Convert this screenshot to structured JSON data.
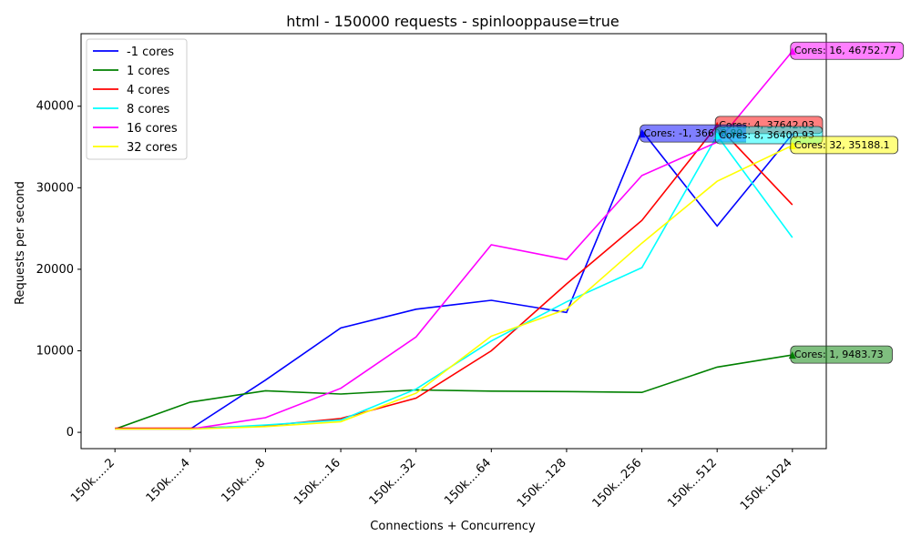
{
  "chart_data": {
    "type": "line",
    "title": "html - 150000 requests - spinlooppause=true",
    "xlabel": "Connections + Concurrency",
    "ylabel": "Requests per second",
    "categories": [
      "150k.....2",
      "150k.....4",
      "150k.....8",
      "150k....16",
      "150k....32",
      "150k....64",
      "150k...128",
      "150k...256",
      "150k...512",
      "150k..1024"
    ],
    "ylim": [
      -2000,
      48900
    ],
    "yticks": [
      0,
      10000,
      20000,
      30000,
      40000
    ],
    "ytick_labels": [
      "0",
      "10000",
      "20000",
      "30000",
      "40000"
    ],
    "grid": false,
    "legend_position": "top-left",
    "series": [
      {
        "name": "-1 cores",
        "color": "#0000ff",
        "values": [
          null,
          400,
          6400,
          12800,
          15100,
          16200,
          14700,
          37000,
          25300,
          36600
        ]
      },
      {
        "name": "1 cores",
        "color": "#008000",
        "values": [
          400,
          3700,
          5100,
          4700,
          5200,
          5050,
          5000,
          4900,
          8000,
          9483.73
        ]
      },
      {
        "name": "4 cores",
        "color": "#ff0000",
        "values": [
          500,
          500,
          800,
          1700,
          4200,
          10000,
          18200,
          26000,
          37642.03,
          27900
        ]
      },
      {
        "name": "8 cores",
        "color": "#00ffff",
        "values": [
          400,
          400,
          900,
          1500,
          5300,
          11200,
          16000,
          20200,
          36400.93,
          23900
        ]
      },
      {
        "name": "16 cores",
        "color": "#ff00ff",
        "values": [
          400,
          400,
          1800,
          5400,
          11700,
          23000,
          21200,
          31500,
          35600,
          46752.77
        ]
      },
      {
        "name": "32 cores",
        "color": "#ffff00",
        "values": [
          400,
          400,
          700,
          1300,
          4800,
          11800,
          15100,
          23200,
          30800,
          35188.1
        ]
      }
    ],
    "annotations": [
      {
        "text": "Cores: 16, 46752.77",
        "category": 9,
        "value": 46752.77,
        "color": "#ff00ff"
      },
      {
        "text": "Cores: 4, 37642.03",
        "category": 8,
        "value": 37642.03,
        "color": "#ff0000"
      },
      {
        "text": "Cores: -1, 36608.89",
        "category": 7,
        "value": 36608.89,
        "color": "#0000ff"
      },
      {
        "text": "Cores: 8, 36400.93",
        "category": 8,
        "value": 36400.93,
        "color": "#00ffff"
      },
      {
        "text": "Cores: 32, 35188.1",
        "category": 9,
        "value": 35188.1,
        "color": "#ffff00"
      },
      {
        "text": "Cores: 1, 9483.73",
        "category": 9,
        "value": 9483.73,
        "color": "#008000"
      }
    ]
  }
}
